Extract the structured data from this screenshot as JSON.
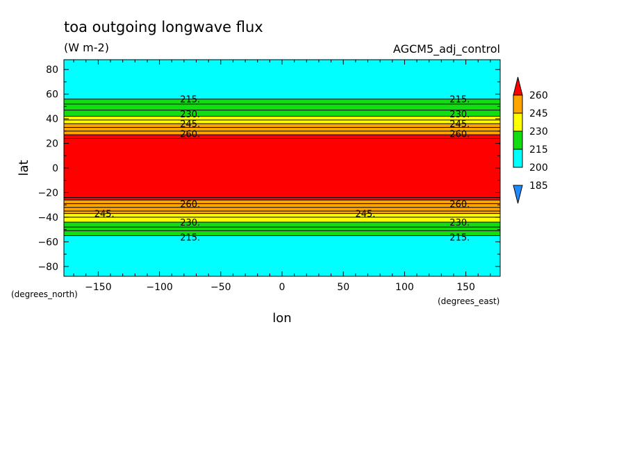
{
  "chart_data": {
    "type": "heatmap",
    "title": "toa outgoing longwave flux",
    "subtitle": "(W m-2)",
    "model": "AGCM5_adj_control",
    "xlabel": "lon",
    "ylabel": "lat",
    "xunits": "(degrees_east)",
    "yunits": "(degrees_north)",
    "xlim": [
      -178,
      178
    ],
    "ylim": [
      -88,
      88
    ],
    "xticks": [
      -150,
      -100,
      -50,
      0,
      50,
      100,
      150
    ],
    "xtick_labels": [
      "−150",
      "−100",
      "−50",
      "0",
      "50",
      "100",
      "150"
    ],
    "yticks": [
      80,
      60,
      40,
      20,
      0,
      -20,
      -40,
      -60,
      -80
    ],
    "ytick_labels": [
      "80",
      "60",
      "40",
      "20",
      "0",
      "−20",
      "−40",
      "−60",
      "−80"
    ],
    "levels": [
      185,
      200,
      215,
      230,
      245,
      260
    ],
    "level_labels": [
      "185",
      "200",
      "215",
      "230",
      "245",
      "260"
    ],
    "colors": [
      "#1E8CFF",
      "#00FFFF",
      "#11DD11",
      "#FFFF00",
      "#FFA500",
      "#FF0000"
    ],
    "bands": [
      {
        "lat": [
          56,
          88
        ],
        "color": "#00FFFF"
      },
      {
        "lat": [
          42,
          56
        ],
        "color": "#11DD11"
      },
      {
        "lat": [
          36,
          42
        ],
        "color": "#FFFF00"
      },
      {
        "lat": [
          27,
          36
        ],
        "color": "#FFA500"
      },
      {
        "lat": [
          -26,
          27
        ],
        "color": "#FF0000"
      },
      {
        "lat": [
          -37,
          -26
        ],
        "color": "#FFA500"
      },
      {
        "lat": [
          -44,
          -37
        ],
        "color": "#FFFF00"
      },
      {
        "lat": [
          -55,
          -44
        ],
        "color": "#11DD11"
      },
      {
        "lat": [
          -88,
          -55
        ],
        "color": "#00FFFF"
      }
    ],
    "contours": [
      56,
      52,
      47,
      42,
      39,
      36,
      33,
      30,
      27,
      24,
      -24,
      -26,
      -29,
      -32,
      -35,
      -37,
      -40,
      -44,
      -48,
      -51,
      -55
    ],
    "contour_labels": [
      {
        "text": "215.",
        "lon": -75,
        "lat": 56
      },
      {
        "text": "215.",
        "lon": 145,
        "lat": 56
      },
      {
        "text": "230.",
        "lon": -75,
        "lat": 44
      },
      {
        "text": "230.",
        "lon": 145,
        "lat": 44
      },
      {
        "text": "245.",
        "lon": -75,
        "lat": 36
      },
      {
        "text": "245.",
        "lon": 145,
        "lat": 36
      },
      {
        "text": "260.",
        "lon": -75,
        "lat": 28
      },
      {
        "text": "260.",
        "lon": 145,
        "lat": 28
      },
      {
        "text": "260.",
        "lon": -75,
        "lat": -29
      },
      {
        "text": "260.",
        "lon": 145,
        "lat": -29
      },
      {
        "text": "245.",
        "lon": -145,
        "lat": -37
      },
      {
        "text": "245.",
        "lon": 68,
        "lat": -37
      },
      {
        "text": "230.",
        "lon": -75,
        "lat": -44
      },
      {
        "text": "230.",
        "lon": 145,
        "lat": -44
      },
      {
        "text": "215.",
        "lon": -75,
        "lat": -56
      },
      {
        "text": "215.",
        "lon": 145,
        "lat": -56
      }
    ]
  }
}
